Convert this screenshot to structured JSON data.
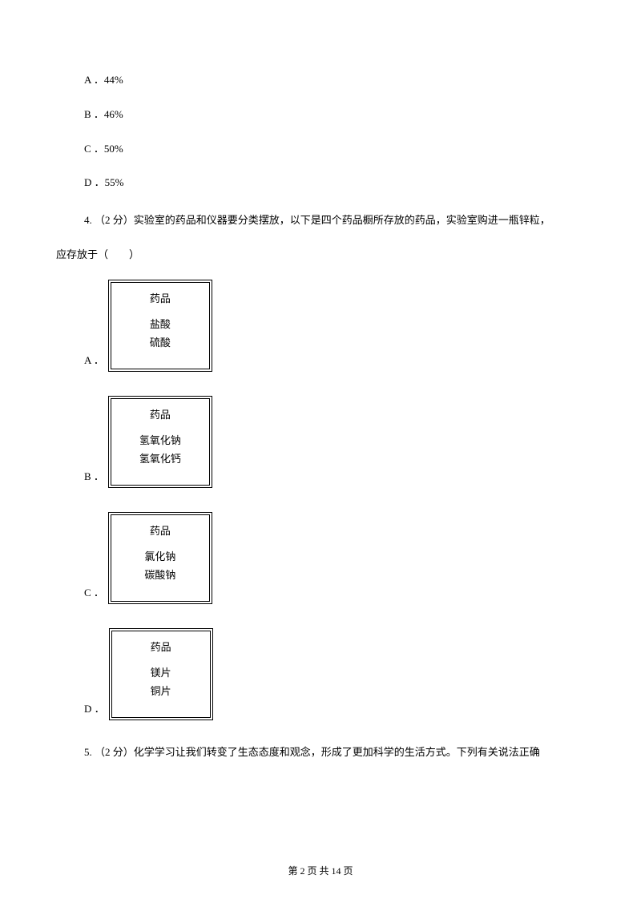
{
  "optionA": "A ．44%",
  "optionB": "B ．46%",
  "optionC": "C ．50%",
  "optionD": "D ．55%",
  "question4": "4. （2 分）实验室的药品和仪器要分类摆放，以下是四个药品橱所存放的药品，实验室购进一瓶锌粒，",
  "question4cont": "应存放于（　　）",
  "cabinets": {
    "header": "药品",
    "a": {
      "letter": "A ．",
      "item1": "盐酸",
      "item2": "硫酸"
    },
    "b": {
      "letter": "B ．",
      "item1": "氢氧化钠",
      "item2": "氢氧化钙"
    },
    "c": {
      "letter": "C ．",
      "item1": "氯化钠",
      "item2": "碳酸钠"
    },
    "d": {
      "letter": "D ．",
      "item1": "镁片",
      "item2": "铜片"
    }
  },
  "question5": "5. （2 分）化学学习让我们转变了生态态度和观念，形成了更加科学的生活方式。下列有关说法正确",
  "footer": "第 2 页 共 14 页"
}
